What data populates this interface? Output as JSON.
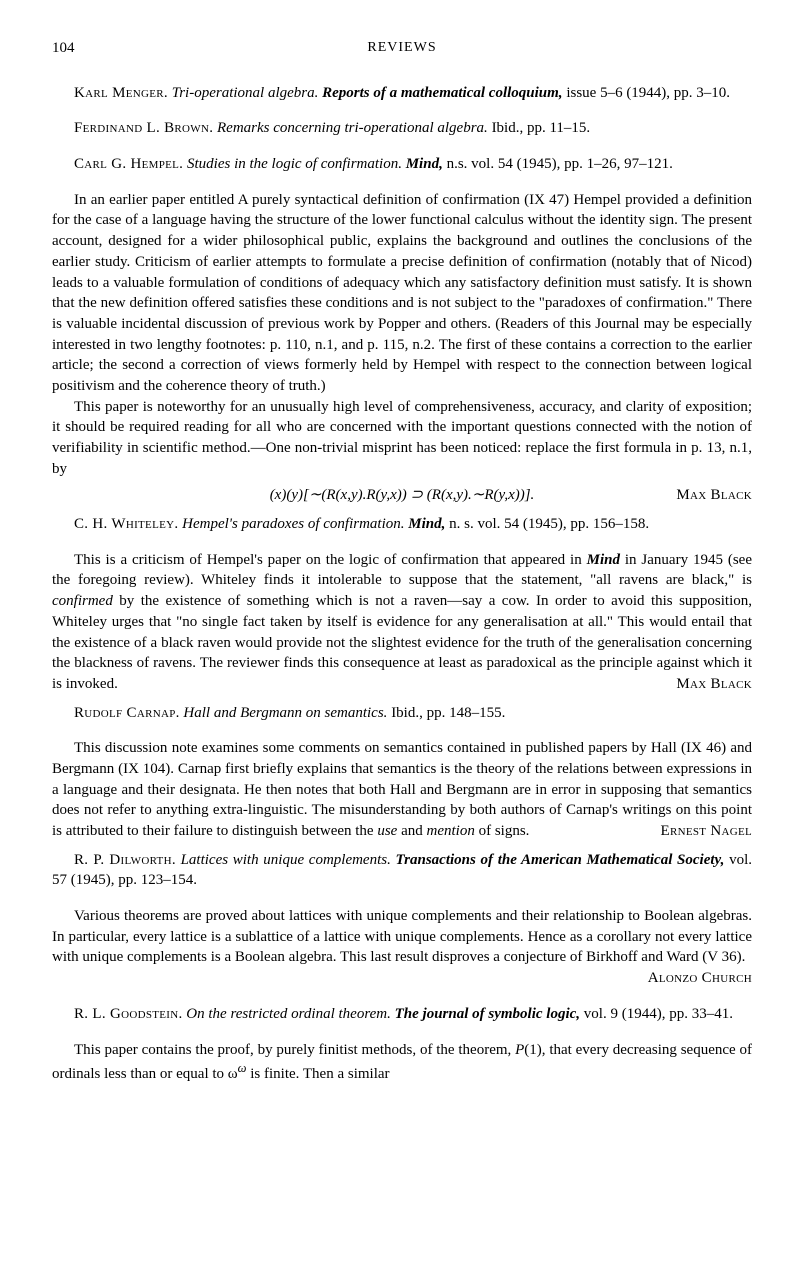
{
  "header": {
    "page_number": "104",
    "title": "REVIEWS"
  },
  "entries": [
    {
      "author": "Karl Menger.",
      "title": "Tri-operational algebra.",
      "journal": "Reports of a mathematical colloquium,",
      "citation": " issue 5–6 (1944), pp. 3–10."
    },
    {
      "author": "Ferdinand L. Brown.",
      "title": "Remarks concerning tri-operational algebra.",
      "citation": "  Ibid., pp. 11–15."
    },
    {
      "author": "Carl G. Hempel.",
      "title": "Studies in the logic of confirmation.",
      "journal": "Mind,",
      "citation": " n.s. vol. 54 (1945), pp. 1–26, 97–121.",
      "body1": "In an earlier paper entitled A purely syntactical definition of confirmation (IX 47) Hempel provided a definition for the case of a language having the structure of the lower functional calculus without the identity sign.  The present account, designed for a wider philosophical public, explains the background and outlines the conclusions of the earlier study. Criticism of earlier attempts to formulate a precise definition of confirmation (notably that of Nicod) leads to a valuable formulation of conditions of adequacy which any satisfactory definition must satisfy.  It is shown that the new definition offered satisfies these conditions and is not subject to the \"paradoxes of confirmation.\"  There is valuable incidental discussion of previous work by Popper and others.  (Readers of this Journal may be especially interested in two lengthy footnotes: p. 110, n.1, and p. 115, n.2.  The first of these contains a correction to the earlier article; the second a correction of views formerly held by Hempel with respect to the connection between logical positivism and the coherence theory of truth.)",
      "body2": "This paper is noteworthy for an unusually high level of comprehensiveness, accuracy, and clarity of exposition; it should be required reading for all who are concerned with the important questions connected with the notion of verifiability in scientific method.—One non-trivial misprint has been noticed: replace the first formula in p. 13, n.1, by",
      "formula": "(x)(y)[∼(R(x,y).R(y,x)) ⊃ (R(x,y).∼R(y,x))].",
      "reviewer": "Max Black"
    },
    {
      "author": "C. H. Whiteley.",
      "title": "Hempel's paradoxes of confirmation.",
      "journal": "Mind,",
      "citation": " n. s. vol. 54 (1945), pp. 156–158.",
      "body1_a": "This is a criticism of Hempel's paper on the logic of confirmation that appeared in ",
      "body1_b": "Mind",
      "body1_c": " in January 1945 (see the foregoing review).  Whiteley finds it intolerable to suppose that the statement, \"all ravens are black,\" is ",
      "body1_d": "confirmed",
      "body1_e": " by the existence of something which is not a raven—say a cow.  In order to avoid this supposition, Whiteley urges that \"no single fact taken by itself is evidence for any generalisation at all.\"  This would entail that the existence of a black raven would provide not the slightest evidence for the truth of the generalisation concerning the blackness of ravens.  The reviewer finds this consequence at least as paradoxical as the principle against which it is invoked.",
      "reviewer": "Max Black"
    },
    {
      "author": "Rudolf Carnap.",
      "title": "Hall and Bergmann on semantics.",
      "citation": "  Ibid., pp. 148–155.",
      "body1_a": "This discussion note examines some comments on semantics contained in published papers by Hall (IX 46) and Bergmann (IX 104).  Carnap first briefly explains that semantics is the theory of the relations between expressions in a language and their designata.  He then notes that both Hall and Bergmann are in error in supposing that semantics does not refer to anything extra-linguistic.  The misunderstanding by both authors of Carnap's writings on this point is attributed to their failure to distinguish between the ",
      "body1_b": "use",
      "body1_c": " and ",
      "body1_d": "mention",
      "body1_e": " of signs.",
      "reviewer": "Ernest Nagel"
    },
    {
      "author": "R. P. Dilworth.",
      "title": "Lattices with unique complements.",
      "journal": "Transactions of the American Mathematical Society,",
      "citation": " vol. 57 (1945), pp. 123–154.",
      "body1": "Various theorems are proved about lattices with unique complements and their relationship to Boolean algebras.  In particular, every lattice is a sublattice of a lattice with unique complements.  Hence as a corollary not every lattice with unique complements is a Boolean algebra.  This last result disproves a conjecture of Birkhoff and Ward (V 36).",
      "reviewer": "Alonzo Church"
    },
    {
      "author": "R. L. Goodstein.",
      "title": "On the restricted ordinal theorem.",
      "journal": "The journal of symbolic logic,",
      "citation": " vol. 9 (1944), pp. 33–41.",
      "body1_a": "This paper contains the proof, by purely finitist methods, of the theorem, ",
      "body1_b": "P",
      "body1_c": "(1), that every decreasing sequence of ordinals less than or equal to ω",
      "body1_d": "ω",
      "body1_e": " is finite.  Then a similar"
    }
  ]
}
